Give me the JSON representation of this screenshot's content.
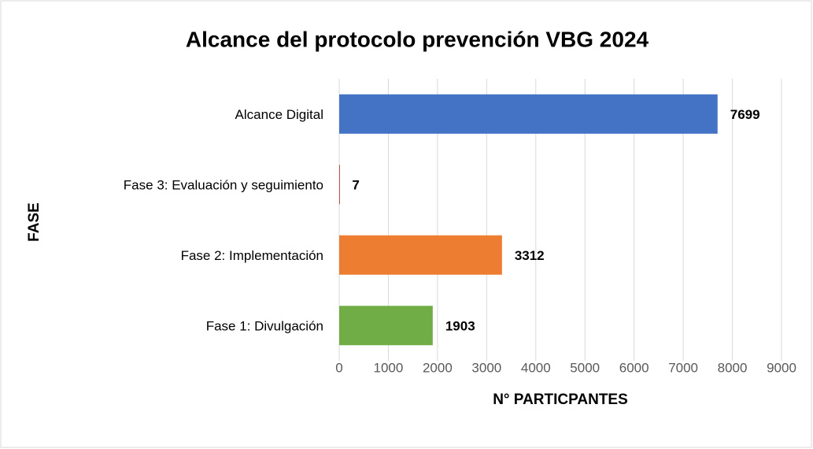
{
  "chart_data": {
    "type": "bar",
    "orientation": "horizontal",
    "title": "Alcance del protocolo prevención VBG 2024",
    "x_label": "N° PARTICPANTES",
    "y_label": "FASE",
    "categories": [
      "Alcance Digital",
      "Fase 3: Evaluación y seguimiento",
      "Fase 2: Implementación",
      "Fase 1: Divulgación"
    ],
    "values": [
      7699,
      7,
      3312,
      1903
    ],
    "colors": [
      "#4472c4",
      "#c0504d",
      "#ed7d31",
      "#70ad47"
    ],
    "xlim": [
      0,
      9000
    ],
    "xticks": [
      0,
      1000,
      2000,
      3000,
      4000,
      5000,
      6000,
      7000,
      8000,
      9000
    ],
    "grid": true
  }
}
